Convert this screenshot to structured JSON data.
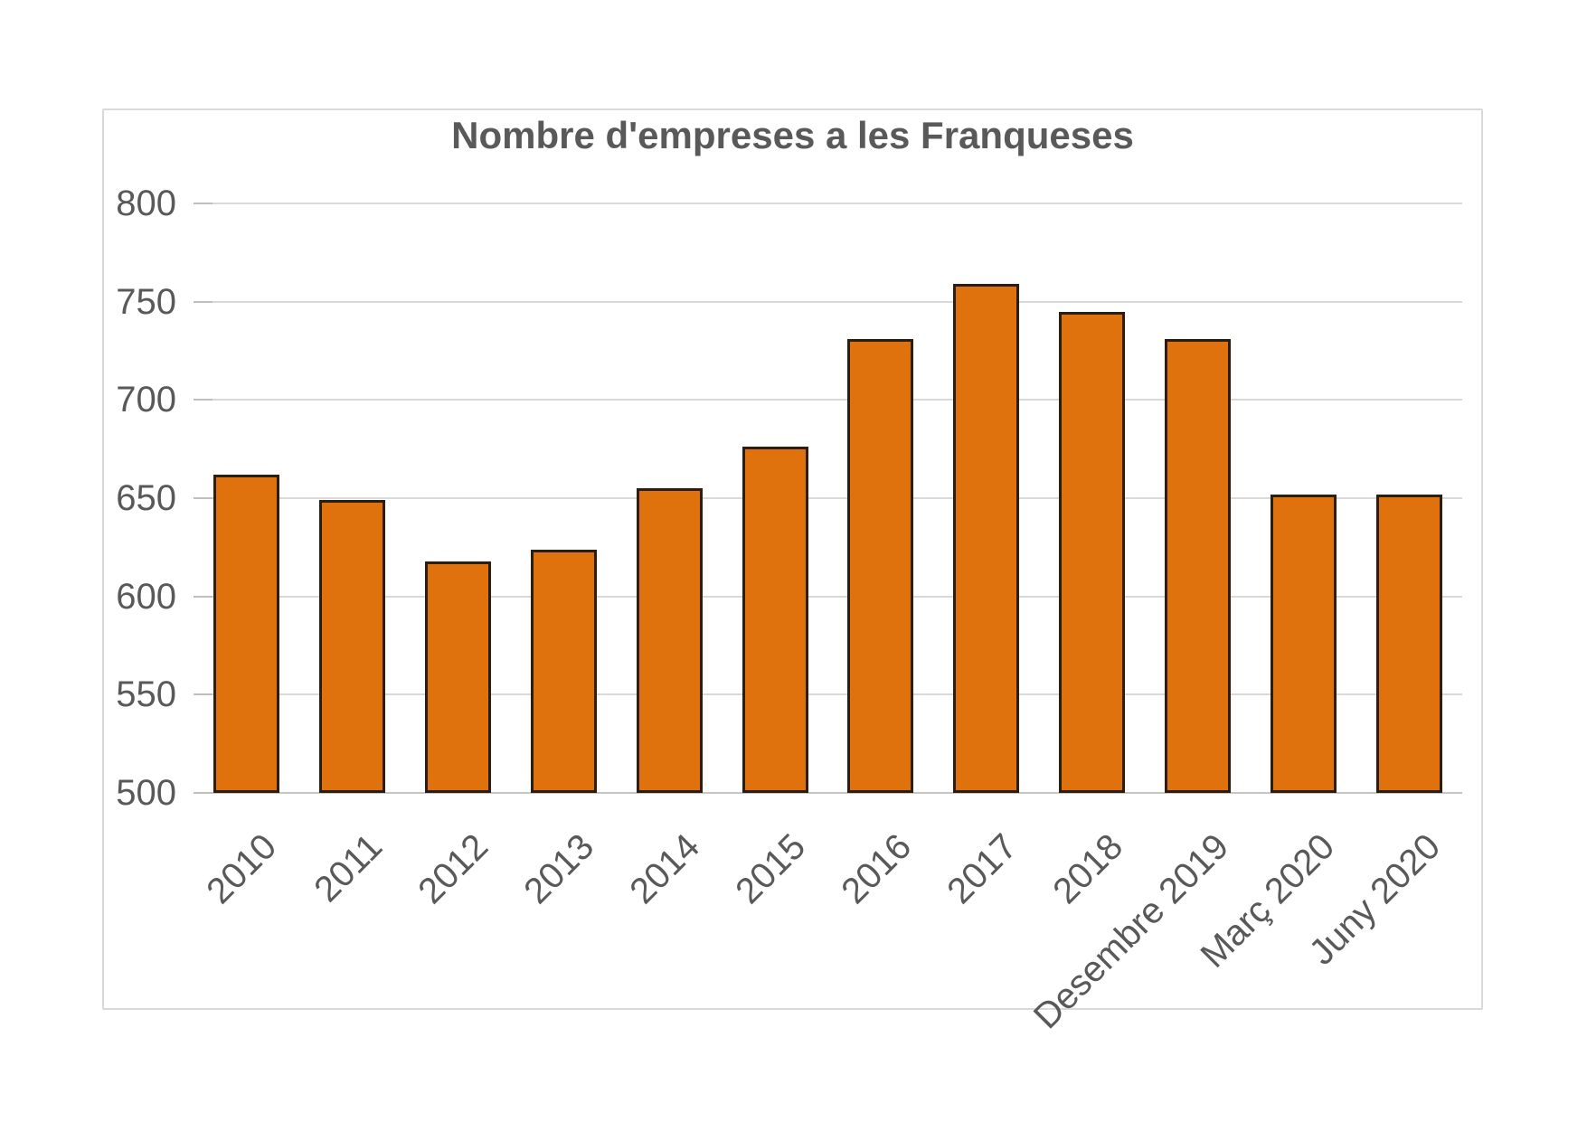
{
  "chart_data": {
    "type": "bar",
    "title": "Nombre d'empreses a les Franqueses",
    "categories": [
      "2010",
      "2011",
      "2012",
      "2013",
      "2014",
      "2015",
      "2016",
      "2017",
      "2018",
      "Desembre 2019",
      "Març 2020",
      "Juny 2020"
    ],
    "values": [
      662,
      649,
      618,
      624,
      655,
      676,
      731,
      759,
      745,
      731,
      652,
      652
    ],
    "xlabel": "",
    "ylabel": "",
    "ylim": [
      500,
      800
    ],
    "y_ticks": [
      500,
      550,
      600,
      650,
      700,
      750,
      800
    ],
    "grid": true,
    "legend": "none",
    "bar_color": "#df720d",
    "bar_border_color": "#2b1d10"
  },
  "colors": {
    "text": "#595959",
    "gridline": "#d9d9d9",
    "axis_line": "#c6c6c6",
    "frame_border": "#d9d9d9",
    "background": "#ffffff"
  }
}
